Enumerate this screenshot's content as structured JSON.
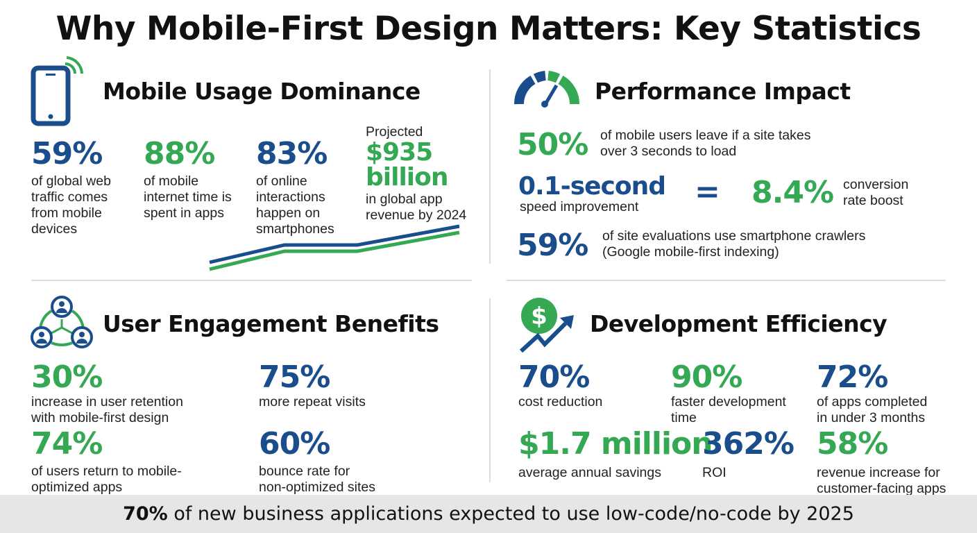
{
  "title": "Why Mobile-First Design Matters: Key Statistics",
  "colors": {
    "blue": "#1a4d8c",
    "green": "#34a853",
    "footer_bg": "#e6e6e6"
  },
  "mobile": {
    "heading": "Mobile Usage Dominance",
    "icon": "smartphone-signal-icon",
    "stats": [
      {
        "value": "59%",
        "l1": "of global web",
        "l2": "traffic comes",
        "l3": "from mobile",
        "l4": "devices"
      },
      {
        "value": "88%",
        "l1": "of mobile",
        "l2": "internet time is",
        "l3": "spent in apps"
      },
      {
        "value": "83%",
        "l1": "of online",
        "l2": "interactions",
        "l3": "happen on",
        "l4": "smartphones"
      }
    ],
    "projected": {
      "pre": "Projected",
      "value1": "$935",
      "value2": "billion",
      "l1": "in global app",
      "l2": "revenue by 2024"
    }
  },
  "performance": {
    "heading": "Performance Impact",
    "icon": "speedometer-icon",
    "s1": {
      "value": "50%",
      "l1": "of mobile users leave if a site takes",
      "l2": "over 3 seconds to load"
    },
    "s2": {
      "value": "0.1-second",
      "label": "speed improvement",
      "equals": "=",
      "value2": "8.4%",
      "l1": "conversion",
      "l2": "rate boost"
    },
    "s3": {
      "value": "59%",
      "l1": "of site evaluations use smartphone crawlers",
      "l2": "(Google mobile-first indexing)"
    }
  },
  "engagement": {
    "heading": "User Engagement Benefits",
    "icon": "user-network-icon",
    "stats": [
      {
        "value": "30%",
        "l1": "increase in user retention",
        "l2": "with mobile-first design"
      },
      {
        "value": "75%",
        "l1": "more repeat visits",
        "l2": ""
      },
      {
        "value": "74%",
        "l1": "of users return to mobile-",
        "l2": "optimized apps"
      },
      {
        "value": "60%",
        "l1": "bounce rate for",
        "l2": "non-optimized sites"
      }
    ]
  },
  "development": {
    "heading": "Development Efficiency",
    "icon": "dollar-growth-icon",
    "stats": [
      {
        "value": "70%",
        "l1": "cost reduction",
        "l2": ""
      },
      {
        "value": "90%",
        "l1": "faster development",
        "l2": "time"
      },
      {
        "value": "72%",
        "l1": "of apps completed",
        "l2": "in under 3 months"
      },
      {
        "value": "$1.7 million",
        "l1": "average annual savings",
        "l2": ""
      },
      {
        "value": "362%",
        "l1": "ROI",
        "l2": ""
      },
      {
        "value": "58%",
        "l1": "revenue increase for",
        "l2": "customer-facing apps"
      }
    ]
  },
  "footer": {
    "bold": "70%",
    "text": " of new business applications expected to use low-code/no-code by 2025"
  }
}
